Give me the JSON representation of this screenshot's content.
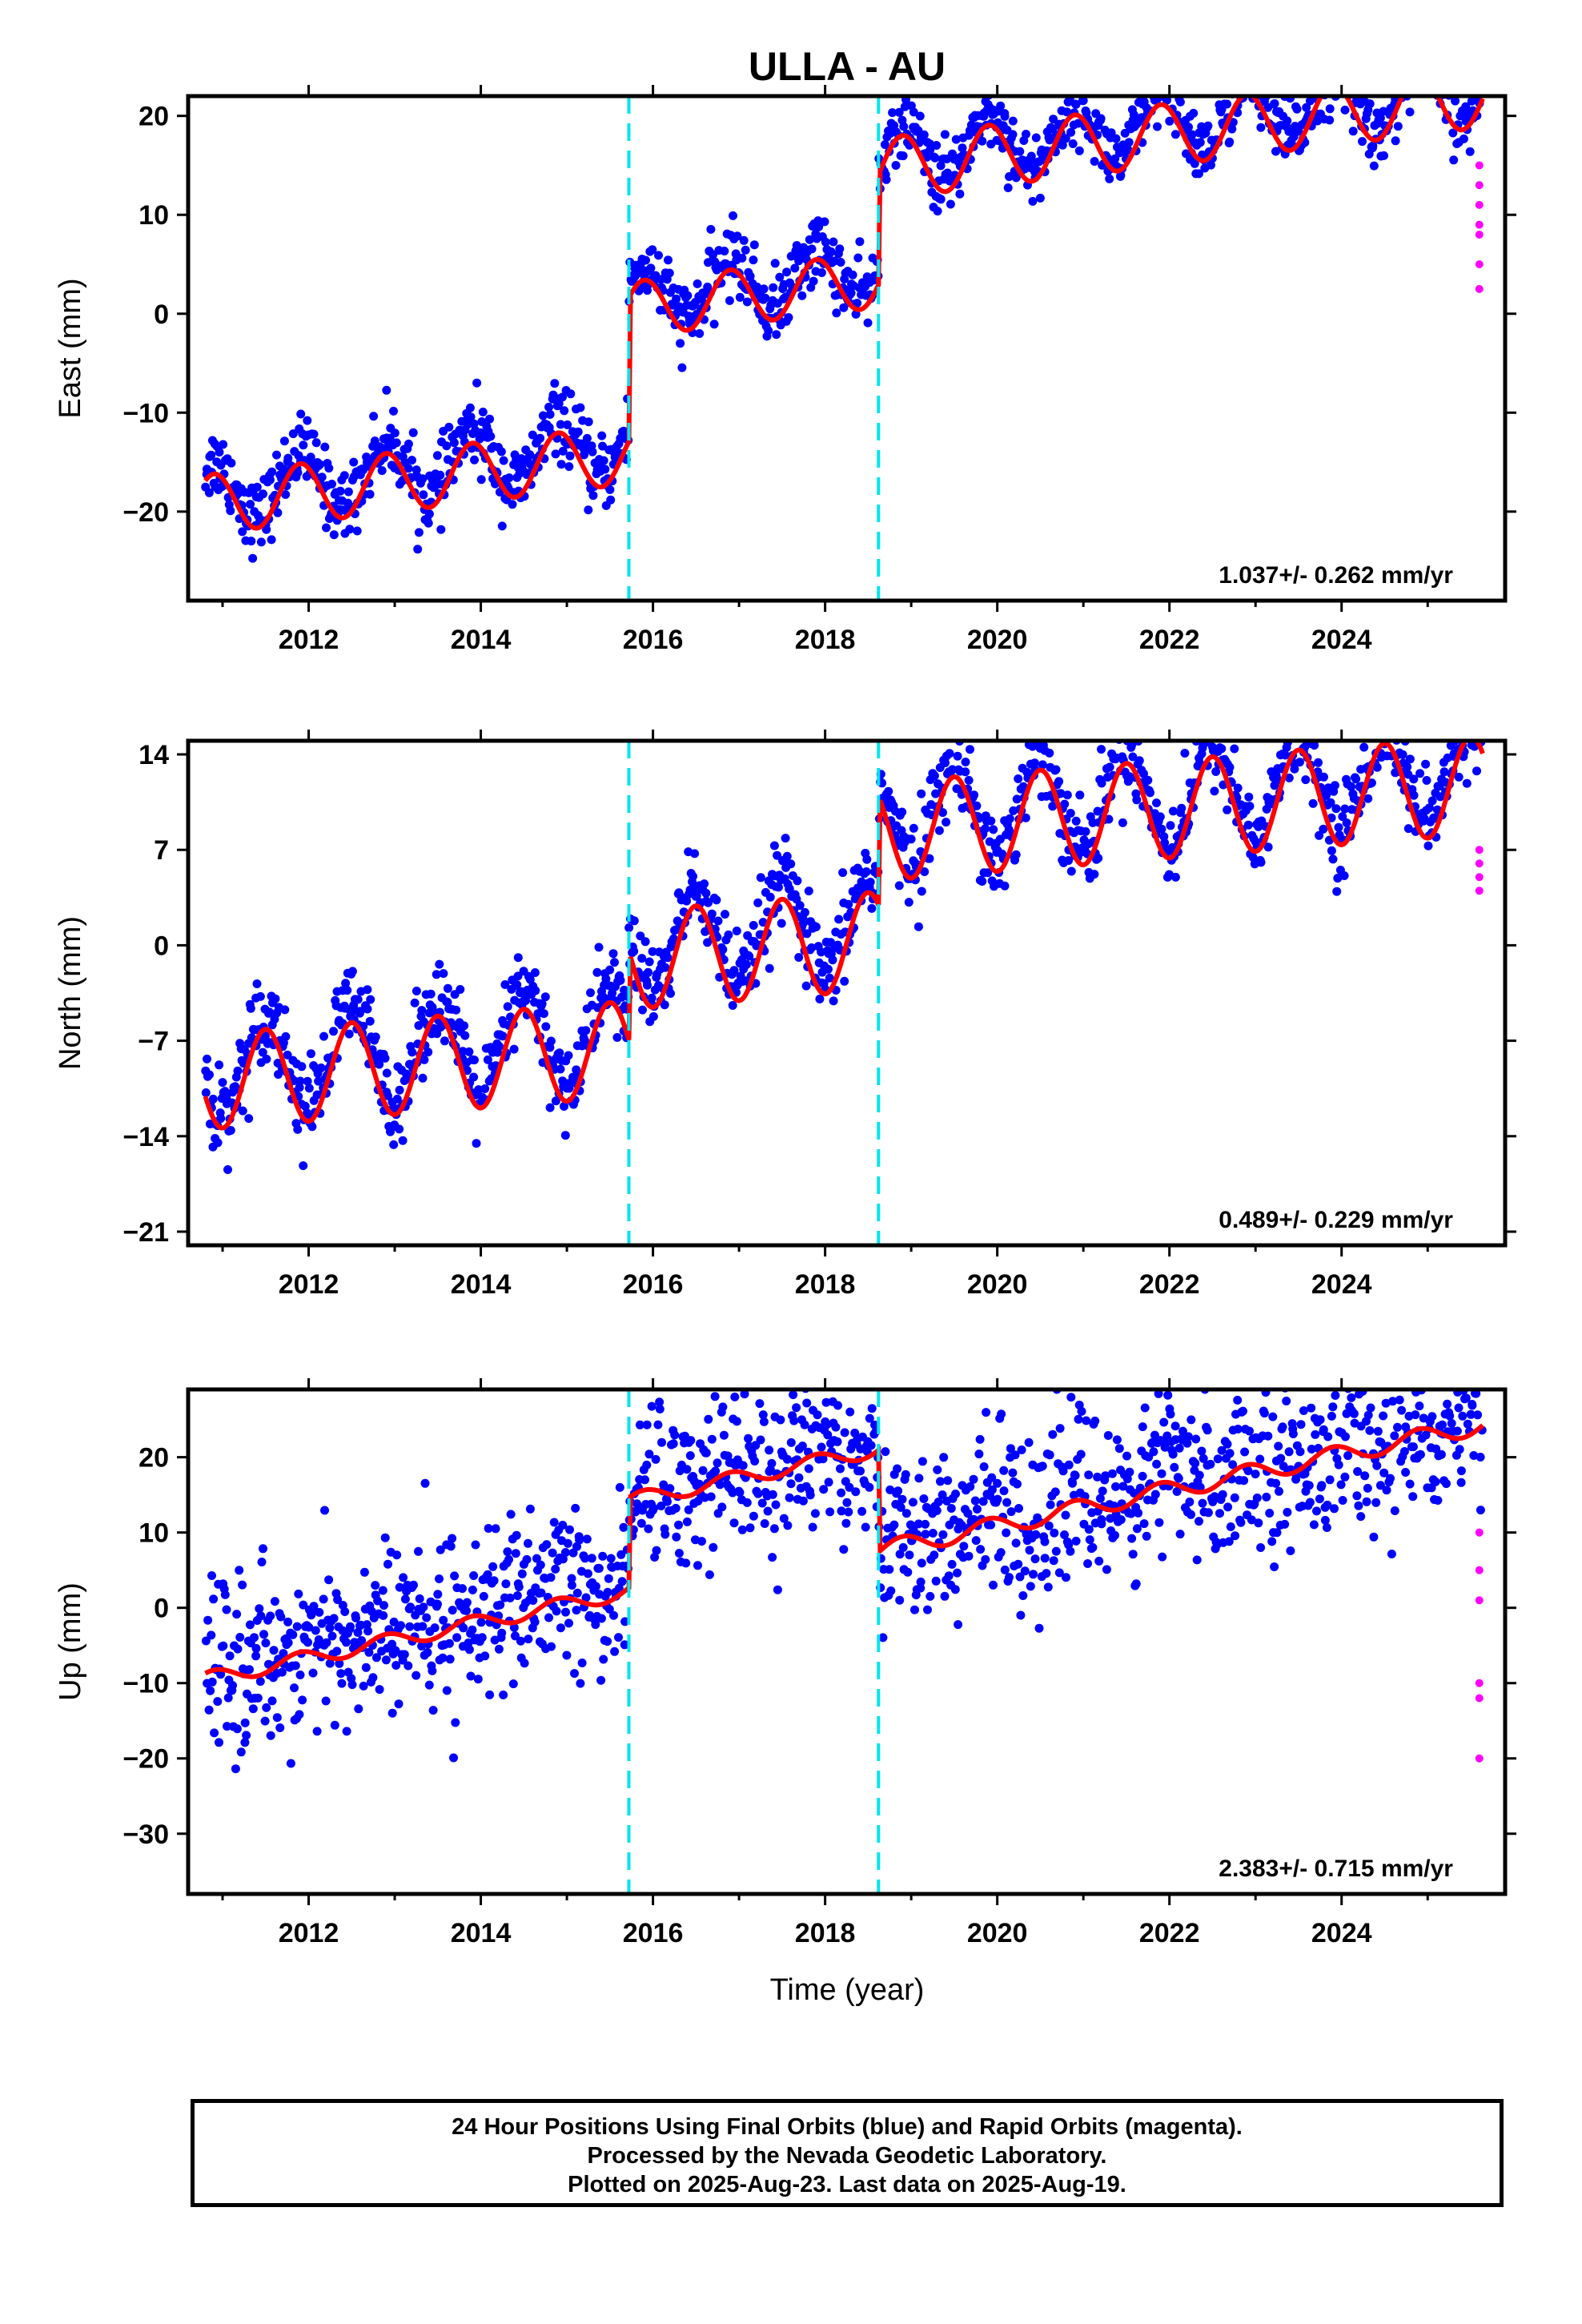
{
  "title": "ULLA - AU",
  "xlabel": "Time (year)",
  "caption": {
    "line1": "24 Hour Positions Using Final Orbits (blue) and Rapid Orbits (magenta).",
    "line2": "Processed by the Nevada Geodetic Laboratory.",
    "line3": "Plotted on 2025-Aug-23. Last data on 2025-Aug-19."
  },
  "colors": {
    "final": "#0000ff",
    "rapid": "#ff00ff",
    "model": "#ff0000",
    "offset": "#00e5ee"
  },
  "chart_data": [
    {
      "type": "scatter",
      "component": "east",
      "ylabel": "East (mm)",
      "rate_text": "1.037+/- 0.262 mm/yr",
      "xlim": [
        2010.6,
        2025.9
      ],
      "ylim": [
        -29,
        22
      ],
      "xticks": [
        2012,
        2014,
        2016,
        2018,
        2020,
        2022,
        2024
      ],
      "yticks": [
        -20,
        -10,
        0,
        10,
        20
      ],
      "offset_lines": [
        2015.72,
        2018.62
      ],
      "model": {
        "segments": [
          {
            "start": 2010.8,
            "end": 2015.72,
            "base": -19.3,
            "slope": 1.04,
            "amp": 3.0
          },
          {
            "start": 2015.72,
            "end": 2018.62,
            "base": -4.7,
            "slope": 1.04,
            "amp": 2.8
          },
          {
            "start": 2018.62,
            "end": 2025.65,
            "base": 6.5,
            "slope": 1.04,
            "amp": 3.1
          }
        ],
        "phase_year": 2011.9
      },
      "scatter": {
        "noise": 1.8,
        "count": 1400
      },
      "rapid_points": [
        {
          "x": 2025.6,
          "y": 15
        },
        {
          "x": 2025.6,
          "y": 13
        },
        {
          "x": 2025.6,
          "y": 11
        },
        {
          "x": 2025.6,
          "y": 9
        },
        {
          "x": 2025.6,
          "y": 8
        },
        {
          "x": 2025.6,
          "y": 5
        },
        {
          "x": 2025.6,
          "y": 2.5
        }
      ]
    },
    {
      "type": "scatter",
      "component": "north",
      "ylabel": "North (mm)",
      "rate_text": "0.489+/- 0.229 mm/yr",
      "xlim": [
        2010.6,
        2025.9
      ],
      "ylim": [
        -22,
        15
      ],
      "xticks": [
        2012,
        2014,
        2016,
        2018,
        2020,
        2022,
        2024
      ],
      "yticks": [
        -21,
        -14,
        -7,
        0,
        7,
        14
      ],
      "offset_lines": [
        2015.72,
        2018.62
      ],
      "model": {
        "segments": [
          {
            "start": 2010.8,
            "end": 2015.72,
            "base": -10.0,
            "slope": 0.49,
            "amp": 3.5
          },
          {
            "start": 2015.72,
            "end": 2018.62,
            "base": -3.5,
            "slope": 0.49,
            "amp": 3.6
          },
          {
            "start": 2018.62,
            "end": 2025.65,
            "base": 4.5,
            "slope": 0.49,
            "amp": 3.6
          }
        ],
        "phase_year": 2011.5
      },
      "scatter": {
        "noise": 1.6,
        "count": 1400
      },
      "rapid_points": [
        {
          "x": 2025.6,
          "y": 7
        },
        {
          "x": 2025.6,
          "y": 6
        },
        {
          "x": 2025.6,
          "y": 5
        },
        {
          "x": 2025.6,
          "y": 4
        }
      ]
    },
    {
      "type": "scatter",
      "component": "up",
      "ylabel": "Up (mm)",
      "rate_text": "2.383+/- 0.715 mm/yr",
      "xlim": [
        2010.6,
        2025.9
      ],
      "ylim": [
        -38,
        29
      ],
      "xticks": [
        2012,
        2014,
        2016,
        2018,
        2020,
        2022,
        2024
      ],
      "yticks": [
        -30,
        -20,
        -10,
        0,
        10,
        20
      ],
      "offset_lines": [
        2015.72,
        2018.62
      ],
      "model": {
        "segments": [
          {
            "start": 2010.8,
            "end": 2015.72,
            "base": -9.5,
            "slope": 2.38,
            "amp": 1.0
          },
          {
            "start": 2015.72,
            "end": 2018.62,
            "base": 2.5,
            "slope": 2.38,
            "amp": 1.0
          },
          {
            "start": 2018.62,
            "end": 2025.65,
            "base": -11.0,
            "slope": 2.38,
            "amp": 1.2
          }
        ],
        "phase_year": 2011.9
      },
      "scatter": {
        "noise": 5.5,
        "count": 1400
      },
      "rapid_points": [
        {
          "x": 2025.6,
          "y": 10
        },
        {
          "x": 2025.6,
          "y": 5
        },
        {
          "x": 2025.6,
          "y": 1
        },
        {
          "x": 2025.6,
          "y": -10
        },
        {
          "x": 2025.6,
          "y": -12
        },
        {
          "x": 2025.6,
          "y": -20
        }
      ]
    }
  ]
}
